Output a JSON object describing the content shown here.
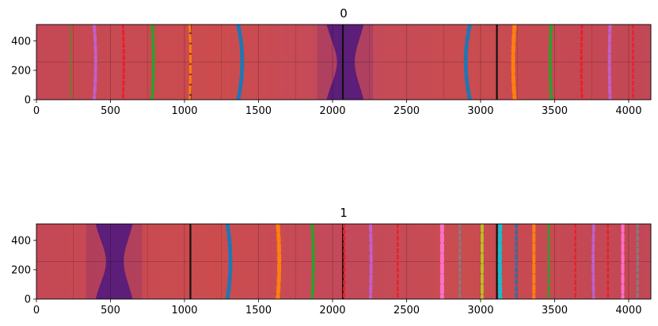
{
  "chart_data": [
    {
      "type": "heatmap",
      "title": "0",
      "xlim": [
        0,
        4150
      ],
      "ylim": [
        0,
        512
      ],
      "xticks": [
        0,
        500,
        1000,
        1500,
        2000,
        2500,
        3000,
        3500,
        4000
      ],
      "yticks": [
        0,
        200,
        400
      ],
      "grid": true,
      "background_color": "#c84b52",
      "dark_bands": [
        {
          "x": [
            1960,
            2210
          ],
          "waist": [
            2030,
            2150
          ],
          "color": "#5c1e78"
        }
      ],
      "black_lines": [
        1040,
        2070,
        3110
      ],
      "curves": [
        {
          "x": 230,
          "bow": 0,
          "color": "#6e7d2a",
          "dash": "short",
          "width": 2.5
        },
        {
          "x": 400,
          "bow": 10,
          "color": "#c060c8",
          "dash": "long",
          "width": 4
        },
        {
          "x": 590,
          "bow": 5,
          "color": "#e8202a",
          "dash": "short",
          "width": 3
        },
        {
          "x": 790,
          "bow": 8,
          "color": "#2ca02c",
          "dash": "long",
          "width": 4
        },
        {
          "x": 1040,
          "bow": 5,
          "color": "#ff7f0e",
          "dash": "long",
          "width": 3
        },
        {
          "x": 1390,
          "bow": 28,
          "color": "#1f77b4",
          "dash": "long",
          "width": 5
        },
        {
          "x": 2900,
          "bow": -28,
          "color": "#1f77b4",
          "dash": "long",
          "width": 5
        },
        {
          "x": 3220,
          "bow": -10,
          "color": "#ff7f0e",
          "dash": "long",
          "width": 5
        },
        {
          "x": 3470,
          "bow": -8,
          "color": "#2ca02c",
          "dash": "long",
          "width": 4
        },
        {
          "x": 3680,
          "bow": -5,
          "color": "#e8202a",
          "dash": "short",
          "width": 3
        },
        {
          "x": 3870,
          "bow": -5,
          "color": "#c060c8",
          "dash": "long",
          "width": 4
        },
        {
          "x": 4030,
          "bow": 0,
          "color": "#e8202a",
          "dash": "short",
          "width": 2.5
        }
      ]
    },
    {
      "type": "heatmap",
      "title": "1",
      "xlim": [
        0,
        4150
      ],
      "ylim": [
        0,
        512
      ],
      "xticks": [
        0,
        500,
        1000,
        1500,
        2000,
        2500,
        3000,
        3500,
        4000
      ],
      "yticks": [
        0,
        200,
        400
      ],
      "grid": true,
      "background_color": "#c84b52",
      "dark_bands": [
        {
          "x": [
            400,
            650
          ],
          "waist": [
            470,
            590
          ],
          "color": "#5c1e78"
        }
      ],
      "black_lines": [
        1040,
        2070,
        3110
      ],
      "curves": [
        {
          "x": 1310,
          "bow": 20,
          "color": "#1f77b4",
          "dash": "long",
          "width": 5
        },
        {
          "x": 1640,
          "bow": 10,
          "color": "#ff7f0e",
          "dash": "long",
          "width": 5
        },
        {
          "x": 1870,
          "bow": 8,
          "color": "#2ca02c",
          "dash": "long",
          "width": 4
        },
        {
          "x": 2080,
          "bow": 4,
          "color": "#e8202a",
          "dash": "short",
          "width": 3
        },
        {
          "x": 2260,
          "bow": 4,
          "color": "#c060c8",
          "dash": "long",
          "width": 4
        },
        {
          "x": 2440,
          "bow": 0,
          "color": "#e8202a",
          "dash": "short",
          "width": 2.5
        },
        {
          "x": 2740,
          "bow": 0,
          "color": "#ff6ec7",
          "dash": "long",
          "width": 5
        },
        {
          "x": 2860,
          "bow": 0,
          "color": "#7f7f7f",
          "dash": "short",
          "width": 3
        },
        {
          "x": 3010,
          "bow": 0,
          "color": "#bcbd22",
          "dash": "long",
          "width": 4
        },
        {
          "x": 3130,
          "bow": -3,
          "color": "#17becf",
          "dash": "long",
          "width": 5
        },
        {
          "x": 3240,
          "bow": 0,
          "color": "#1f77b4",
          "dash": "short",
          "width": 3
        },
        {
          "x": 3360,
          "bow": 0,
          "color": "#ff7f0e",
          "dash": "long",
          "width": 4
        },
        {
          "x": 3460,
          "bow": 0,
          "color": "#2ca02c",
          "dash": "short",
          "width": 3
        },
        {
          "x": 3640,
          "bow": 0,
          "color": "#e8202a",
          "dash": "short",
          "width": 2.5
        },
        {
          "x": 3760,
          "bow": -3,
          "color": "#c060c8",
          "dash": "long",
          "width": 4
        },
        {
          "x": 3860,
          "bow": 0,
          "color": "#e8202a",
          "dash": "short",
          "width": 2.5
        },
        {
          "x": 3960,
          "bow": 0,
          "color": "#ff6ec7",
          "dash": "long",
          "width": 4
        },
        {
          "x": 4060,
          "bow": 0,
          "color": "#7f7f7f",
          "dash": "short",
          "width": 3
        }
      ]
    }
  ]
}
